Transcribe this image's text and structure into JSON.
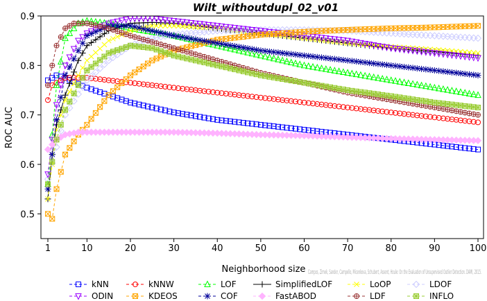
{
  "chart_data": {
    "type": "line",
    "title": "Wilt_withoutdupl_02_v01",
    "xlabel": "Neighborhood size",
    "ylabel": "ROC AUC",
    "xlim": [
      1,
      100
    ],
    "ylim": [
      0.45,
      0.9
    ],
    "xticks": [
      1,
      10,
      20,
      30,
      40,
      50,
      60,
      70,
      80,
      90,
      100
    ],
    "yticks": [
      0.5,
      0.6,
      0.7,
      0.8,
      0.9
    ],
    "legend_position": "bottom",
    "credit": "Campos, Zimek, Sander, Campello, Micenkova, Schubert, Assent, Houle: On the Evaluation of Unsupervised Outlier Detection. DAMI, 2015.",
    "series": [
      {
        "name": "kNN",
        "color": "#0000ff",
        "marker": "square",
        "lty": "dashed",
        "points": [
          [
            1,
            0.77
          ],
          [
            3,
            0.78
          ],
          [
            5,
            0.775
          ],
          [
            10,
            0.755
          ],
          [
            20,
            0.725
          ],
          [
            30,
            0.705
          ],
          [
            40,
            0.69
          ],
          [
            50,
            0.68
          ],
          [
            60,
            0.67
          ],
          [
            70,
            0.66
          ],
          [
            80,
            0.65
          ],
          [
            90,
            0.64
          ],
          [
            100,
            0.63
          ]
        ]
      },
      {
        "name": "kNNW",
        "color": "#ff0000",
        "marker": "circle",
        "lty": "dashed",
        "points": [
          [
            1,
            0.73
          ],
          [
            2,
            0.76
          ],
          [
            5,
            0.775
          ],
          [
            10,
            0.775
          ],
          [
            20,
            0.765
          ],
          [
            30,
            0.755
          ],
          [
            40,
            0.745
          ],
          [
            50,
            0.735
          ],
          [
            60,
            0.725
          ],
          [
            70,
            0.715
          ],
          [
            80,
            0.705
          ],
          [
            90,
            0.695
          ],
          [
            100,
            0.685
          ]
        ]
      },
      {
        "name": "LOF",
        "color": "#00ff00",
        "marker": "triangle",
        "lty": "dashed",
        "points": [
          [
            1,
            0.56
          ],
          [
            3,
            0.76
          ],
          [
            5,
            0.855
          ],
          [
            8,
            0.885
          ],
          [
            10,
            0.89
          ],
          [
            15,
            0.885
          ],
          [
            20,
            0.875
          ],
          [
            30,
            0.86
          ],
          [
            40,
            0.84
          ],
          [
            50,
            0.82
          ],
          [
            60,
            0.8
          ],
          [
            70,
            0.785
          ],
          [
            80,
            0.77
          ],
          [
            90,
            0.755
          ],
          [
            100,
            0.74
          ]
        ]
      },
      {
        "name": "SimplifiedLOF",
        "color": "#000000",
        "marker": "plus",
        "lty": "solid",
        "points": [
          [
            1,
            0.53
          ],
          [
            2,
            0.62
          ],
          [
            3,
            0.68
          ],
          [
            5,
            0.74
          ],
          [
            8,
            0.81
          ],
          [
            10,
            0.84
          ],
          [
            15,
            0.87
          ],
          [
            20,
            0.885
          ],
          [
            25,
            0.887
          ],
          [
            30,
            0.885
          ],
          [
            40,
            0.875
          ],
          [
            50,
            0.865
          ],
          [
            60,
            0.855
          ],
          [
            70,
            0.845
          ],
          [
            80,
            0.835
          ],
          [
            90,
            0.828
          ],
          [
            100,
            0.82
          ]
        ]
      },
      {
        "name": "LoOP",
        "color": "#ffff00",
        "marker": "x",
        "lty": "dashed",
        "points": [
          [
            1,
            0.53
          ],
          [
            3,
            0.67
          ],
          [
            5,
            0.73
          ],
          [
            8,
            0.78
          ],
          [
            10,
            0.81
          ],
          [
            15,
            0.85
          ],
          [
            20,
            0.87
          ],
          [
            25,
            0.88
          ],
          [
            30,
            0.88
          ],
          [
            40,
            0.875
          ],
          [
            50,
            0.865
          ],
          [
            60,
            0.855
          ],
          [
            70,
            0.845
          ],
          [
            80,
            0.838
          ],
          [
            90,
            0.832
          ],
          [
            100,
            0.825
          ]
        ]
      },
      {
        "name": "LDOF",
        "color": "#ccccff",
        "marker": "diamond",
        "lty": "dashed",
        "points": [
          [
            1,
            0.57
          ],
          [
            5,
            0.7
          ],
          [
            10,
            0.77
          ],
          [
            15,
            0.81
          ],
          [
            20,
            0.84
          ],
          [
            25,
            0.855
          ],
          [
            30,
            0.862
          ],
          [
            40,
            0.87
          ],
          [
            50,
            0.872
          ],
          [
            60,
            0.872
          ],
          [
            70,
            0.87
          ],
          [
            80,
            0.865
          ],
          [
            90,
            0.86
          ],
          [
            100,
            0.855
          ]
        ]
      },
      {
        "name": "ODIN",
        "color": "#9900ff",
        "marker": "triangle-down",
        "lty": "dashed",
        "points": [
          [
            1,
            0.58
          ],
          [
            3,
            0.72
          ],
          [
            5,
            0.8
          ],
          [
            8,
            0.85
          ],
          [
            10,
            0.865
          ],
          [
            15,
            0.885
          ],
          [
            20,
            0.895
          ],
          [
            25,
            0.895
          ],
          [
            30,
            0.89
          ],
          [
            40,
            0.88
          ],
          [
            50,
            0.87
          ],
          [
            60,
            0.86
          ],
          [
            70,
            0.85
          ],
          [
            80,
            0.835
          ],
          [
            90,
            0.825
          ],
          [
            100,
            0.815
          ]
        ]
      },
      {
        "name": "KDEOS",
        "color": "#ffa500",
        "marker": "square-x",
        "lty": "dashed",
        "points": [
          [
            1,
            0.5
          ],
          [
            2,
            0.49
          ],
          [
            3,
            0.55
          ],
          [
            5,
            0.62
          ],
          [
            8,
            0.66
          ],
          [
            10,
            0.68
          ],
          [
            15,
            0.74
          ],
          [
            20,
            0.78
          ],
          [
            25,
            0.81
          ],
          [
            30,
            0.83
          ],
          [
            40,
            0.852
          ],
          [
            50,
            0.862
          ],
          [
            60,
            0.868
          ],
          [
            70,
            0.872
          ],
          [
            80,
            0.875
          ],
          [
            90,
            0.877
          ],
          [
            100,
            0.88
          ]
        ]
      },
      {
        "name": "COF",
        "color": "#000099",
        "marker": "star",
        "lty": "dashed",
        "points": [
          [
            1,
            0.55
          ],
          [
            3,
            0.69
          ],
          [
            5,
            0.78
          ],
          [
            8,
            0.83
          ],
          [
            10,
            0.86
          ],
          [
            15,
            0.88
          ],
          [
            20,
            0.88
          ],
          [
            25,
            0.87
          ],
          [
            30,
            0.86
          ],
          [
            40,
            0.845
          ],
          [
            50,
            0.83
          ],
          [
            60,
            0.82
          ],
          [
            70,
            0.81
          ],
          [
            80,
            0.8
          ],
          [
            90,
            0.79
          ],
          [
            100,
            0.78
          ]
        ]
      },
      {
        "name": "FastABOD",
        "color": "#ffb3ff",
        "marker": "diamond-filled",
        "lty": "dashed",
        "points": [
          [
            1,
            0.63
          ],
          [
            3,
            0.65
          ],
          [
            5,
            0.66
          ],
          [
            8,
            0.665
          ],
          [
            10,
            0.665
          ],
          [
            20,
            0.665
          ],
          [
            30,
            0.665
          ],
          [
            40,
            0.663
          ],
          [
            50,
            0.66
          ],
          [
            60,
            0.658
          ],
          [
            70,
            0.655
          ],
          [
            80,
            0.652
          ],
          [
            90,
            0.65
          ],
          [
            100,
            0.648
          ]
        ]
      },
      {
        "name": "LDF",
        "color": "#993333",
        "marker": "circle-plus",
        "lty": "dashed",
        "points": [
          [
            1,
            0.76
          ],
          [
            3,
            0.84
          ],
          [
            5,
            0.875
          ],
          [
            7,
            0.885
          ],
          [
            10,
            0.885
          ],
          [
            15,
            0.875
          ],
          [
            20,
            0.86
          ],
          [
            30,
            0.835
          ],
          [
            40,
            0.81
          ],
          [
            50,
            0.785
          ],
          [
            60,
            0.765
          ],
          [
            70,
            0.745
          ],
          [
            80,
            0.73
          ],
          [
            90,
            0.715
          ],
          [
            100,
            0.7
          ]
        ]
      },
      {
        "name": "INFLO",
        "color": "#99cc33",
        "marker": "star-square",
        "lty": "dashed",
        "points": [
          [
            1,
            0.56
          ],
          [
            3,
            0.65
          ],
          [
            5,
            0.71
          ],
          [
            8,
            0.76
          ],
          [
            10,
            0.79
          ],
          [
            15,
            0.825
          ],
          [
            20,
            0.84
          ],
          [
            25,
            0.835
          ],
          [
            30,
            0.82
          ],
          [
            40,
            0.8
          ],
          [
            50,
            0.78
          ],
          [
            60,
            0.765
          ],
          [
            70,
            0.75
          ],
          [
            80,
            0.738
          ],
          [
            90,
            0.725
          ],
          [
            100,
            0.715
          ]
        ]
      }
    ]
  }
}
